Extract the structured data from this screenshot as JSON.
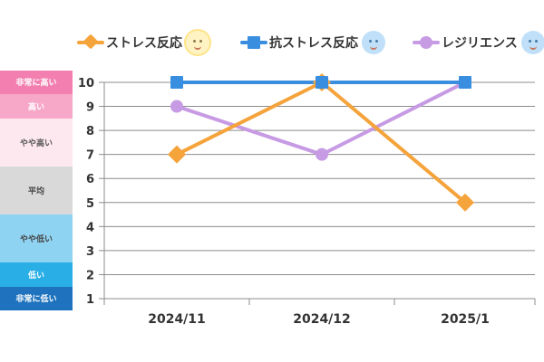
{
  "legend": [
    {
      "label": "ストレス反応",
      "color": "#f5a33b",
      "marker": "diamond",
      "face": "sun-face-icon"
    },
    {
      "label": "抗ストレス反応",
      "color": "#3a8ee0",
      "marker": "square",
      "face": "blue-face-icon"
    },
    {
      "label": "レジリエンス",
      "color": "#c79be4",
      "marker": "circle",
      "face": "bubble-face-icon"
    }
  ],
  "levels": [
    {
      "label": "非常に高い",
      "from": 9.5,
      "to": 10.5,
      "bg": "#f27fb0",
      "fg": "#ffffff"
    },
    {
      "label": "高い",
      "from": 8.5,
      "to": 9.5,
      "bg": "#f7a8c8",
      "fg": "#ffffff"
    },
    {
      "label": "やや高い",
      "from": 6.5,
      "to": 8.5,
      "bg": "#fde8ef",
      "fg": "#555555"
    },
    {
      "label": "平均",
      "from": 4.5,
      "to": 6.5,
      "bg": "#d9d9d9",
      "fg": "#444444"
    },
    {
      "label": "やや低い",
      "from": 2.5,
      "to": 4.5,
      "bg": "#8fd3f2",
      "fg": "#444444"
    },
    {
      "label": "低い",
      "from": 1.5,
      "to": 2.5,
      "bg": "#29aee6",
      "fg": "#ffffff"
    },
    {
      "label": "非常に低い",
      "from": 0.5,
      "to": 1.5,
      "bg": "#1f73be",
      "fg": "#ffffff"
    }
  ],
  "chart_data": {
    "type": "line",
    "categories": [
      "2024/11",
      "2024/12",
      "2025/1"
    ],
    "series": [
      {
        "name": "ストレス反応",
        "values": [
          7,
          10,
          5
        ],
        "color": "#f5a33b",
        "marker": "diamond"
      },
      {
        "name": "抗ストレス反応",
        "values": [
          10,
          10,
          10
        ],
        "color": "#3a8ee0",
        "marker": "square"
      },
      {
        "name": "レジリエンス",
        "values": [
          9,
          7,
          10
        ],
        "color": "#c79be4",
        "marker": "circle"
      }
    ],
    "yticks": [
      1,
      2,
      3,
      4,
      5,
      6,
      7,
      8,
      9,
      10
    ],
    "ylim": [
      1,
      10
    ],
    "grid": true,
    "legend_position": "top"
  }
}
